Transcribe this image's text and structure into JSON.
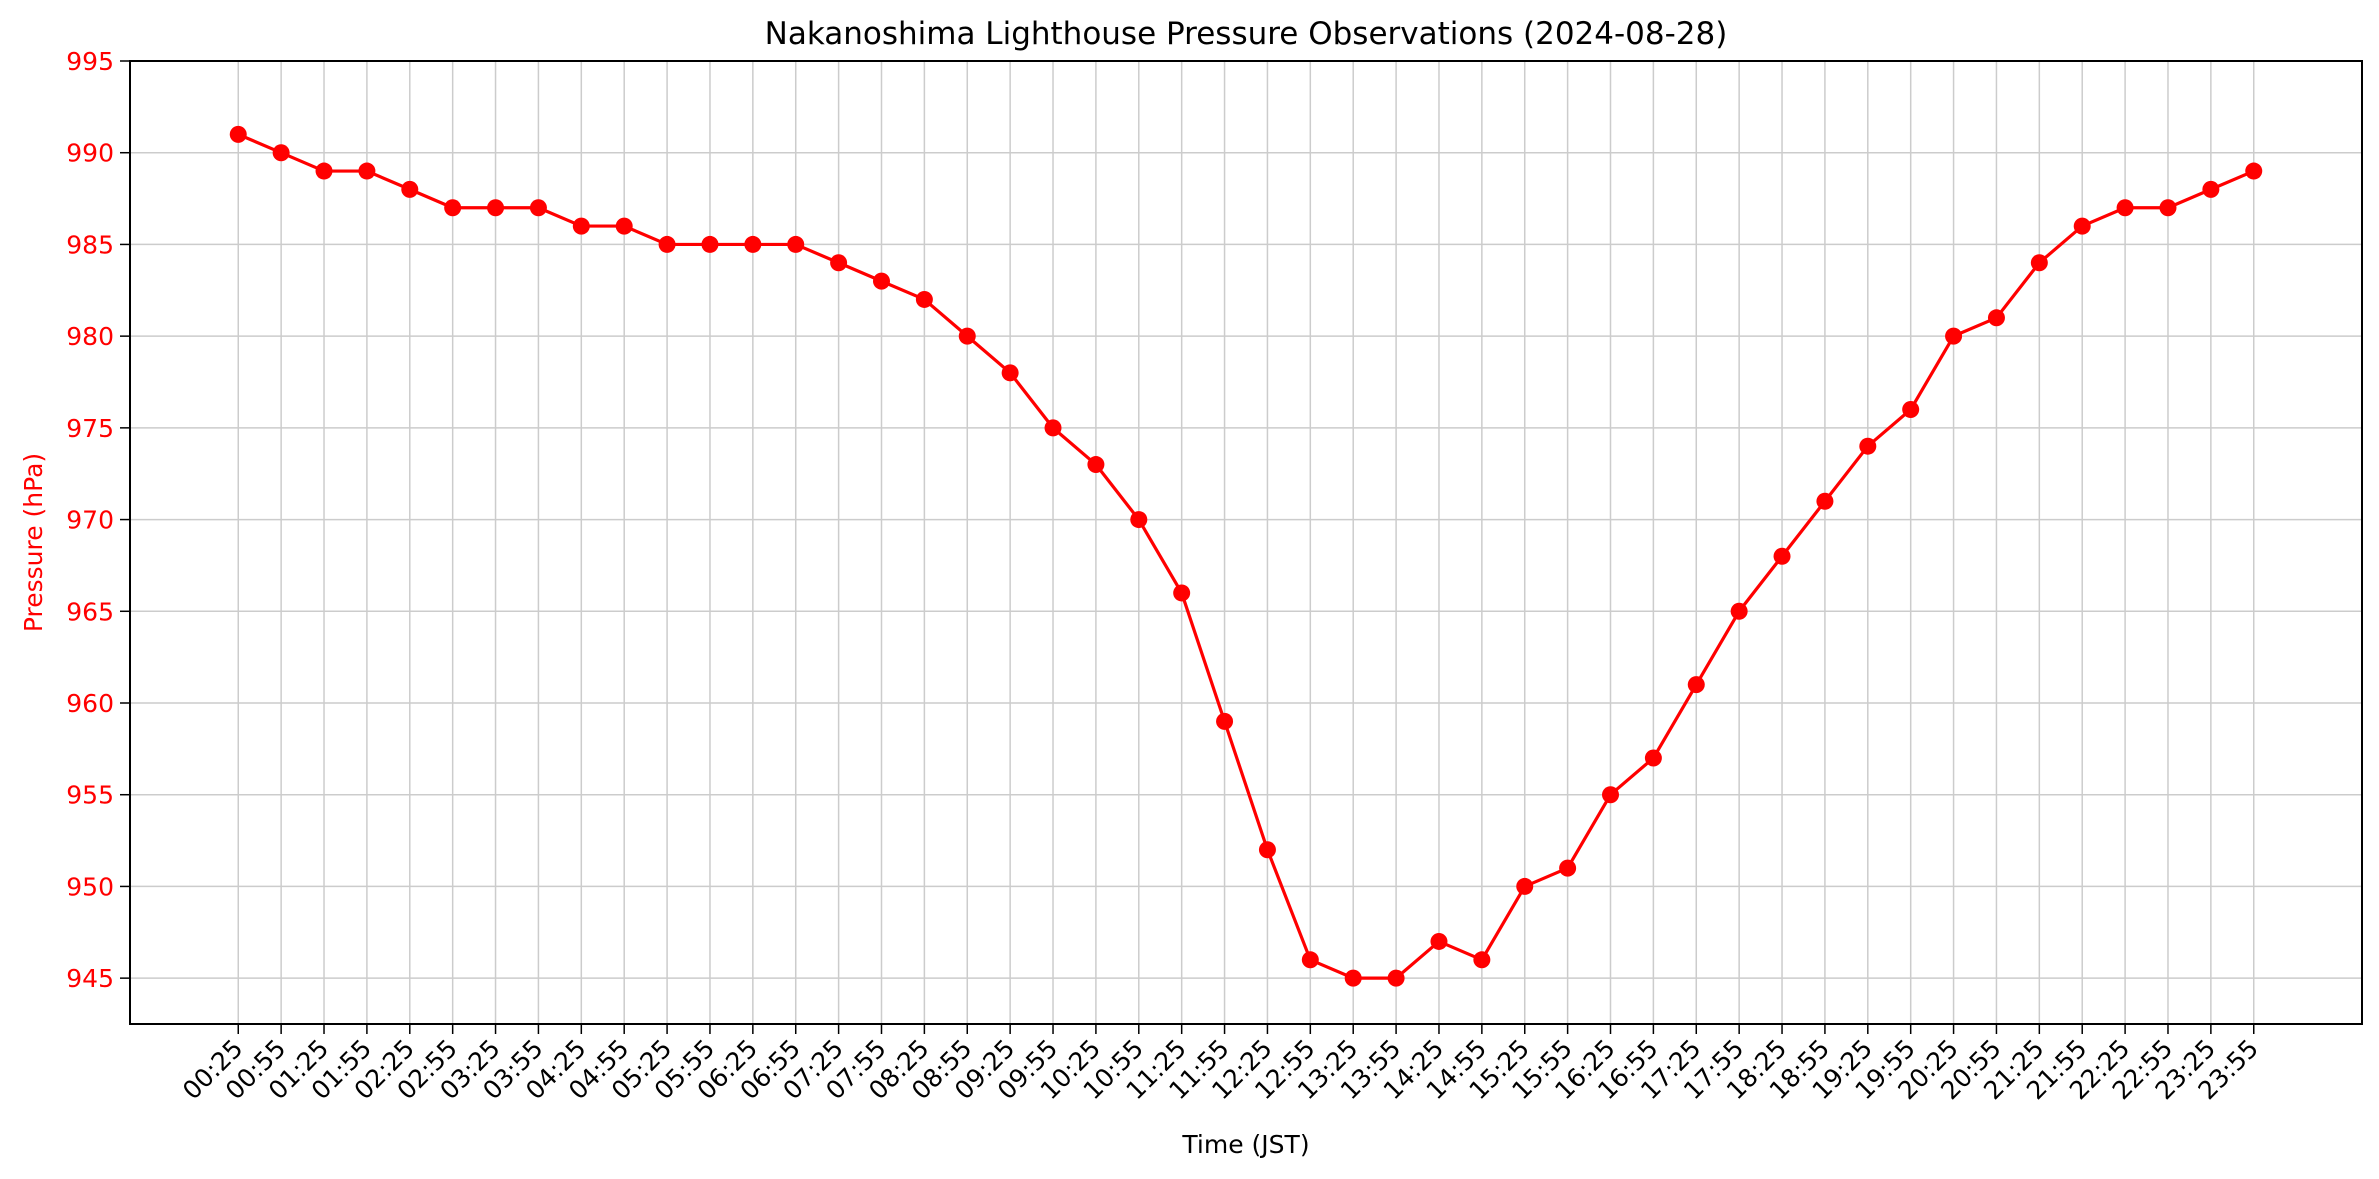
{
  "chart_data": {
    "type": "line",
    "title": "Nakanoshima Lighthouse Pressure Observations (2024-08-28)",
    "xlabel": "Time (JST)",
    "ylabel": "Pressure (hPa)",
    "ylim": [
      942.5,
      995
    ],
    "yticks": [
      945,
      950,
      955,
      960,
      965,
      970,
      975,
      980,
      985,
      990,
      995
    ],
    "grid": true,
    "colors": {
      "series": "#ff0000",
      "grid": "#cccccc",
      "axis": "#000000"
    },
    "categories": [
      "00:25",
      "00:55",
      "01:25",
      "01:55",
      "02:25",
      "02:55",
      "03:25",
      "03:55",
      "04:25",
      "04:55",
      "05:25",
      "05:55",
      "06:25",
      "06:55",
      "07:25",
      "07:55",
      "08:25",
      "08:55",
      "09:25",
      "09:55",
      "10:25",
      "10:55",
      "11:25",
      "11:55",
      "12:25",
      "12:55",
      "13:25",
      "13:55",
      "14:25",
      "14:55",
      "15:25",
      "15:55",
      "16:25",
      "16:55",
      "17:25",
      "17:55",
      "18:25",
      "18:55",
      "19:25",
      "19:55",
      "20:25",
      "20:55",
      "21:25",
      "21:55",
      "22:25",
      "22:55",
      "23:25",
      "23:55"
    ],
    "series": [
      {
        "values": [
          991,
          990,
          989,
          989,
          988,
          987,
          987,
          987,
          986,
          986,
          985,
          985,
          985,
          985,
          984,
          983,
          982,
          980,
          978,
          975,
          973,
          970,
          966,
          959,
          952,
          946,
          945,
          945,
          947,
          946,
          950,
          951,
          955,
          957,
          961,
          965,
          968,
          971,
          974,
          976,
          980,
          981,
          984,
          986,
          987,
          987,
          988,
          989
        ]
      }
    ]
  }
}
